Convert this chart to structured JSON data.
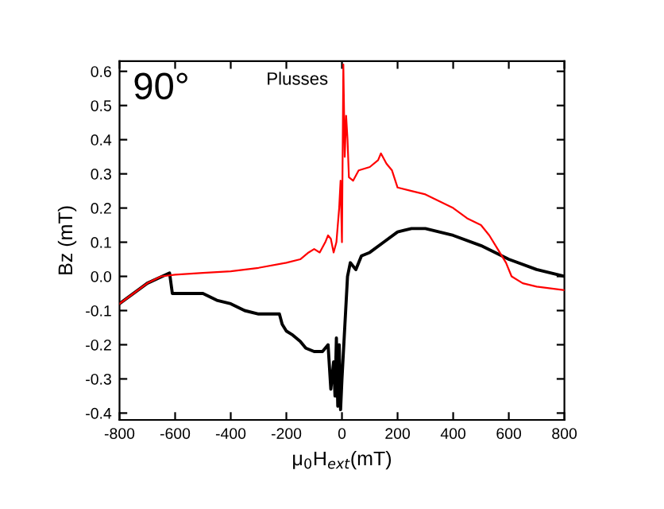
{
  "chart_data": {
    "type": "line",
    "xlabel": "μ$_{0}$H$_{ext}$(mT)",
    "ylabel": "Bz (mT)",
    "annotations": [
      "90°",
      "Plusses"
    ],
    "xlim": [
      -800,
      800
    ],
    "xticks": [
      -800,
      -600,
      -400,
      -200,
      0,
      200,
      400,
      600,
      800
    ],
    "ylim": [
      -0.42,
      0.63
    ],
    "yticks": [
      -0.4,
      -0.3,
      -0.2,
      -0.1,
      {
        "value": 0,
        "label": "0.0"
      },
      0.1,
      0.2,
      0.3,
      0.4,
      0.5,
      0.6
    ],
    "grid": false,
    "line_style": "solid",
    "marker": "none",
    "series": [
      {
        "color": "#ff0000",
        "x": [
          -800,
          -750,
          -700,
          -650,
          -600,
          -500,
          -400,
          -300,
          -200,
          -150,
          -120,
          -100,
          -80,
          -60,
          -50,
          -40,
          -30,
          -20,
          -10,
          -5,
          0,
          5,
          10,
          15,
          20,
          25,
          40,
          60,
          100,
          130,
          140,
          160,
          180,
          200,
          250,
          300,
          350,
          400,
          450,
          500,
          530,
          560,
          590,
          610,
          650,
          700,
          800
        ],
        "values": [
          -0.08,
          -0.05,
          -0.02,
          0.0,
          0.005,
          0.01,
          0.015,
          0.025,
          0.04,
          0.05,
          0.07,
          0.08,
          0.07,
          0.1,
          0.12,
          0.11,
          0.07,
          0.1,
          0.2,
          0.28,
          0.1,
          0.62,
          0.35,
          0.47,
          0.4,
          0.29,
          0.28,
          0.31,
          0.32,
          0.34,
          0.36,
          0.33,
          0.31,
          0.26,
          0.25,
          0.24,
          0.22,
          0.2,
          0.17,
          0.15,
          0.12,
          0.08,
          0.04,
          0.0,
          -0.02,
          -0.03,
          -0.04
        ]
      },
      {
        "color": "#000000",
        "x": [
          -800,
          -700,
          -620,
          -610,
          -550,
          -500,
          -450,
          -400,
          -350,
          -300,
          -250,
          -225,
          -215,
          -200,
          -180,
          -150,
          -130,
          -100,
          -70,
          -50,
          -40,
          -30,
          -25,
          -20,
          -15,
          -10,
          -5,
          0,
          10,
          20,
          30,
          50,
          70,
          100,
          150,
          200,
          250,
          300,
          400,
          500,
          600,
          700,
          800
        ],
        "values": [
          -0.08,
          -0.02,
          0.01,
          -0.05,
          -0.05,
          -0.05,
          -0.07,
          -0.08,
          -0.1,
          -0.11,
          -0.11,
          -0.11,
          -0.14,
          -0.16,
          -0.17,
          -0.19,
          -0.21,
          -0.22,
          -0.22,
          -0.2,
          -0.33,
          -0.25,
          -0.35,
          -0.18,
          -0.38,
          -0.2,
          -0.39,
          -0.3,
          -0.15,
          0.0,
          0.04,
          0.02,
          0.06,
          0.07,
          0.1,
          0.13,
          0.14,
          0.14,
          0.12,
          0.09,
          0.05,
          0.02,
          0.0
        ]
      }
    ]
  }
}
